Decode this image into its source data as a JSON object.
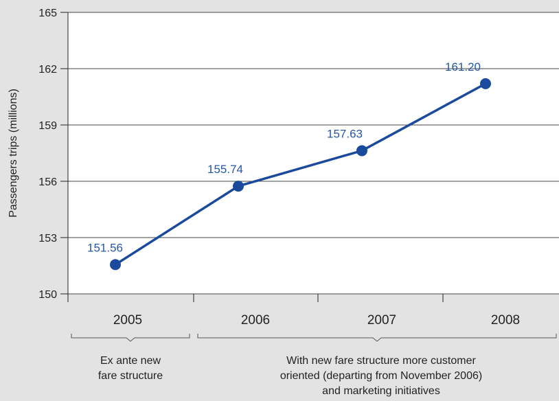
{
  "chart_data": {
    "type": "line",
    "title": "",
    "xlabel": "",
    "ylabel": "Passengers trips (millions)",
    "categories": [
      "2005",
      "2006",
      "2007",
      "2008"
    ],
    "series": [
      {
        "values": [
          151.56,
          155.74,
          157.63,
          161.2
        ]
      }
    ],
    "data_labels": [
      "151.56",
      "155.74",
      "157.63",
      "161.20"
    ],
    "ylim": [
      150,
      165
    ],
    "yticks": [
      "150",
      "153",
      "156",
      "159",
      "162",
      "165"
    ],
    "grid": true,
    "line_color": "#1b4a9c",
    "label_color": "#2457a6",
    "annotations": [
      {
        "lines": [
          "Ex ante new",
          "fare structure"
        ]
      },
      {
        "lines": [
          "With new fare structure more customer",
          "oriented (departing from November 2006)",
          "and marketing initiatives"
        ]
      }
    ]
  }
}
